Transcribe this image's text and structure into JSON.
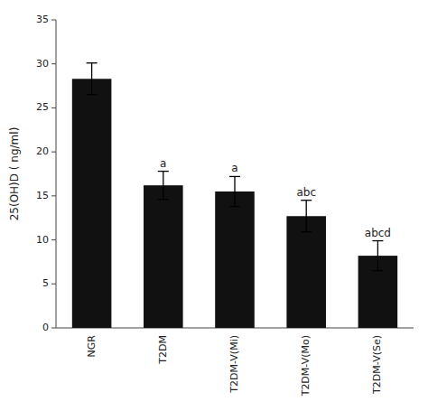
{
  "chart_data": {
    "type": "bar",
    "categories": [
      "NGR",
      "T2DM",
      "T2DM-V(Mi)",
      "T2DM-V(Mo)",
      "T2DM-V(Se)"
    ],
    "values": [
      28.3,
      16.2,
      15.5,
      12.7,
      8.2
    ],
    "errors": [
      1.8,
      1.6,
      1.7,
      1.8,
      1.7
    ],
    "annotations": [
      null,
      "a",
      "a",
      "abc",
      "abcd"
    ],
    "color": "#111111",
    "ylabel": "25(OH)D ( ng/ml)",
    "ylim": [
      0,
      35
    ],
    "yticks": [
      0,
      5,
      10,
      15,
      20,
      25,
      30,
      35
    ],
    "grid": false
  }
}
